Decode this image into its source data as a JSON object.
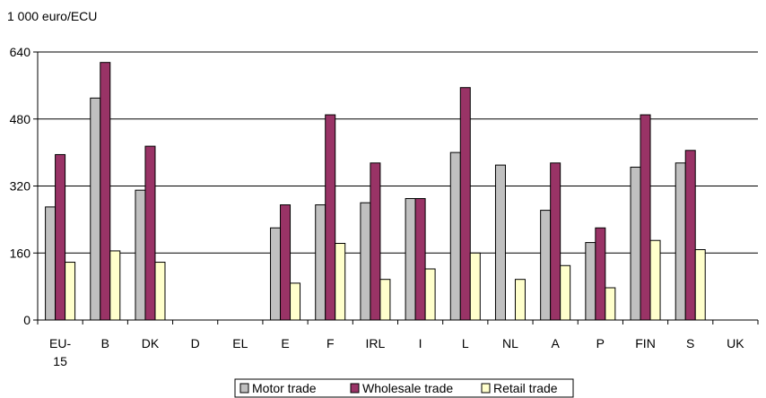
{
  "chart_data": {
    "type": "bar",
    "unit_label": "1 000 euro/ECU",
    "ylim": [
      0,
      640
    ],
    "yticks": [
      "0",
      "160",
      "320",
      "480",
      "640"
    ],
    "ytick_values": [
      0,
      160,
      320,
      480,
      640
    ],
    "grid": true,
    "legend_position": "bottom",
    "categories": [
      "EU-15",
      "B",
      "DK",
      "D",
      "EL",
      "E",
      "F",
      "IRL",
      "I",
      "L",
      "NL",
      "A",
      "P",
      "FIN",
      "S",
      "UK"
    ],
    "category_lines": [
      [
        "EU-",
        "15"
      ],
      [
        "B"
      ],
      [
        "DK"
      ],
      [
        "D"
      ],
      [
        "EL"
      ],
      [
        "E"
      ],
      [
        "F"
      ],
      [
        "IRL"
      ],
      [
        "I"
      ],
      [
        "L"
      ],
      [
        "NL"
      ],
      [
        "A"
      ],
      [
        "P"
      ],
      [
        "FIN"
      ],
      [
        "S"
      ],
      [
        "UK"
      ]
    ],
    "series": [
      {
        "name": "Motor trade",
        "color": "#c0c0c0",
        "values": [
          270,
          530,
          310,
          null,
          null,
          220,
          275,
          280,
          290,
          400,
          370,
          262,
          185,
          365,
          375,
          null
        ]
      },
      {
        "name": "Wholesale trade",
        "color": "#993366",
        "values": [
          395,
          615,
          415,
          null,
          null,
          275,
          490,
          375,
          290,
          555,
          null,
          375,
          220,
          490,
          405,
          null
        ]
      },
      {
        "name": "Retail trade",
        "color": "#ffffcc",
        "values": [
          138,
          165,
          138,
          null,
          null,
          88,
          183,
          97,
          122,
          160,
          97,
          130,
          77,
          190,
          168,
          null
        ]
      }
    ]
  }
}
